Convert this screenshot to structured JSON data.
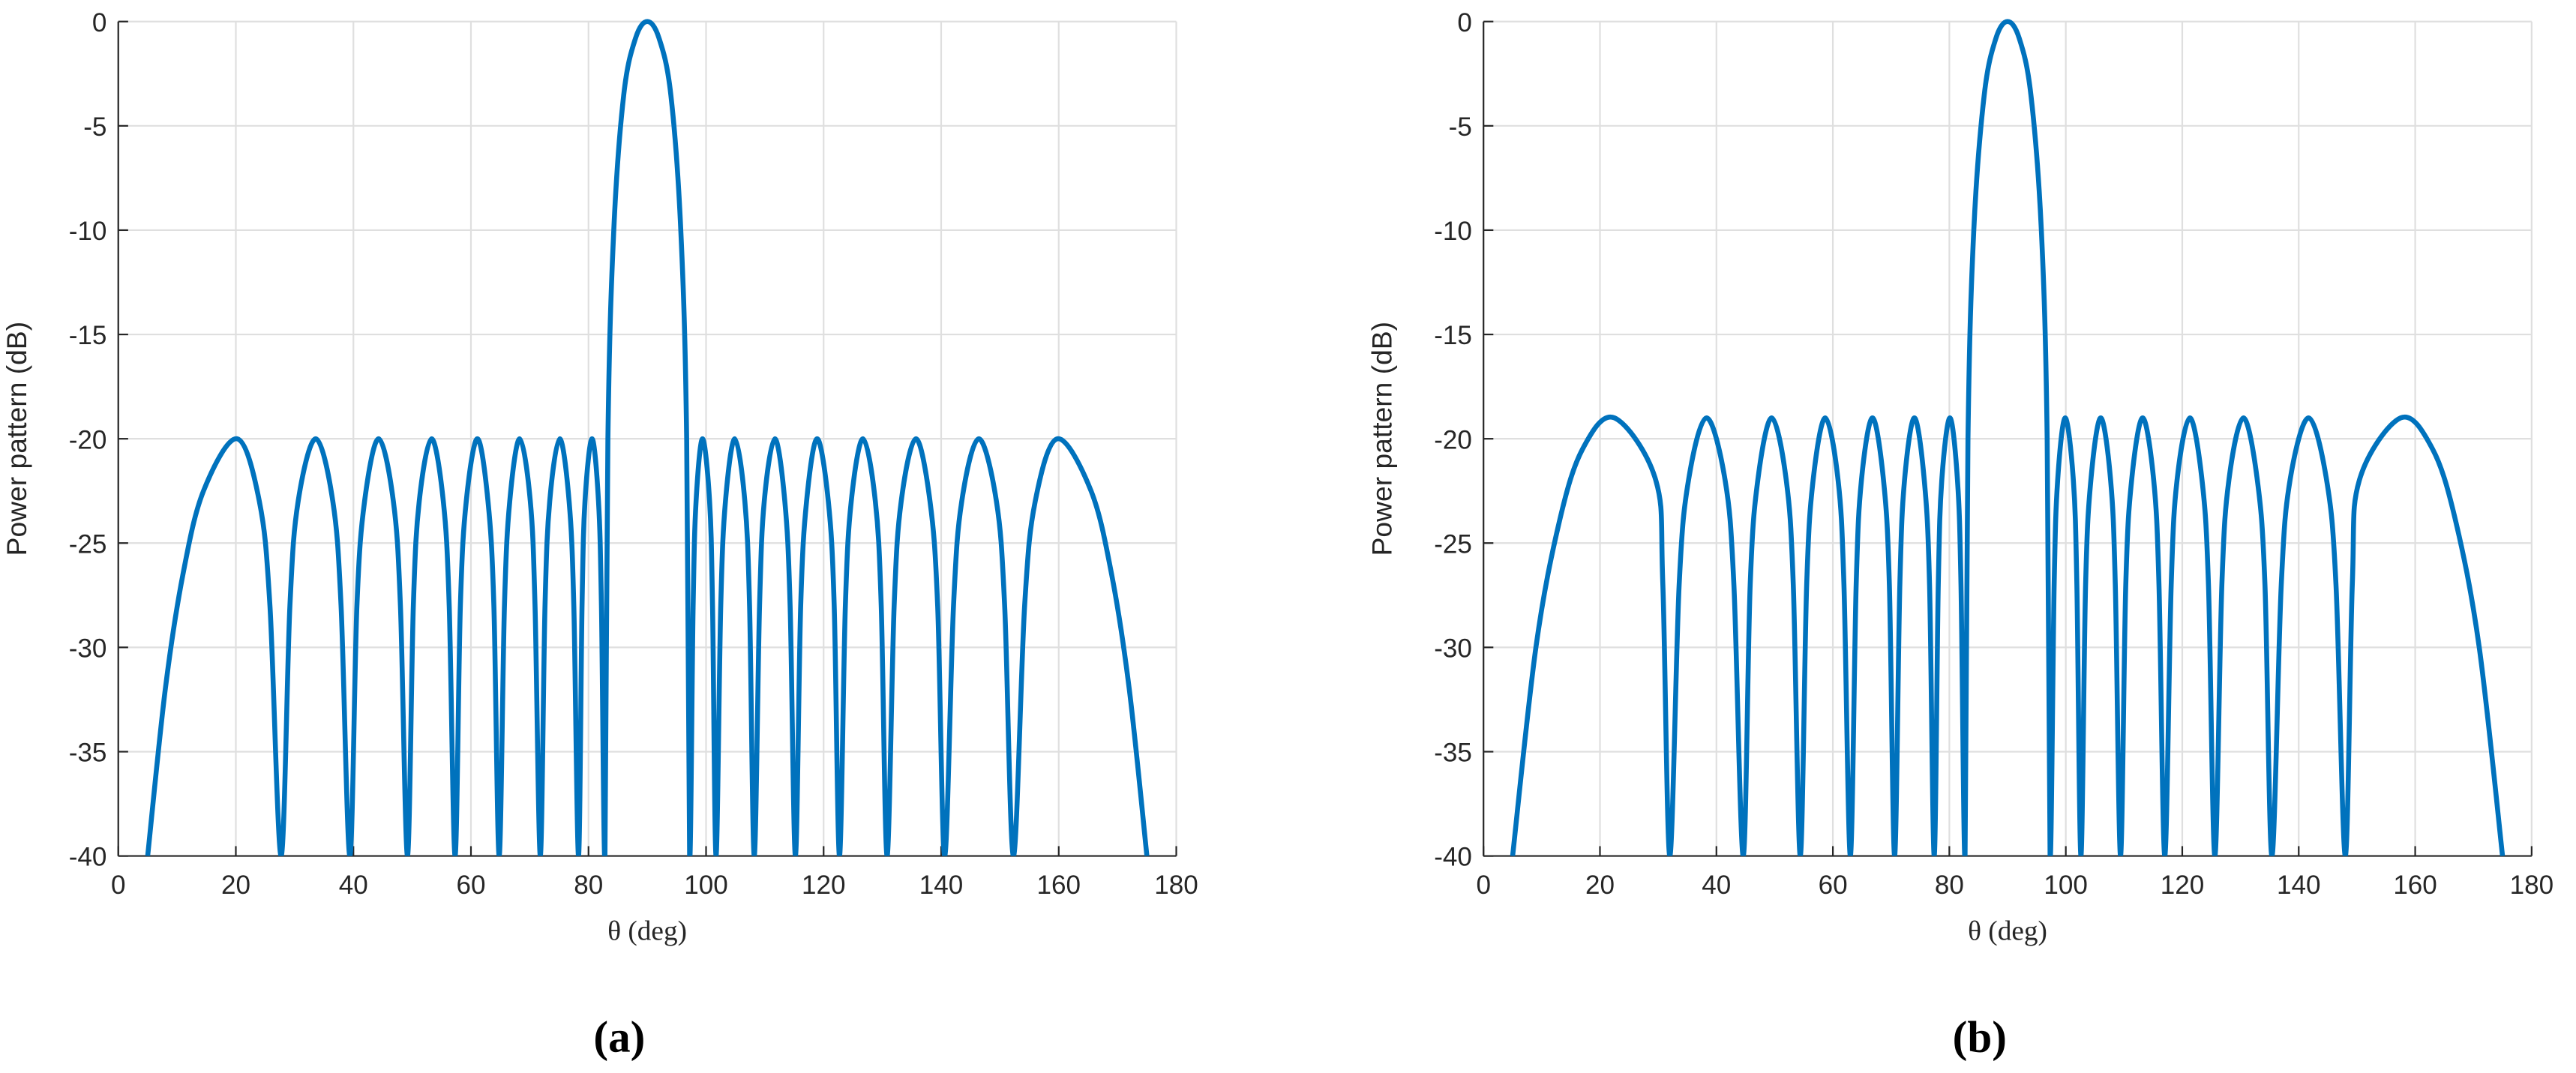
{
  "chart_data": [
    {
      "type": "line",
      "caption": "(a)",
      "xlabel": "θ (deg)",
      "ylabel": "Power pattern (dB)",
      "xlim": [
        0,
        180
      ],
      "ylim": [
        -40,
        0
      ],
      "xticks": [
        0,
        20,
        40,
        60,
        80,
        100,
        120,
        140,
        160,
        180
      ],
      "yticks": [
        0,
        -5,
        -10,
        -15,
        -20,
        -25,
        -30,
        -35,
        -40
      ],
      "grid": true,
      "x": [
        5,
        8,
        11,
        14.5,
        20.2,
        24,
        25.8,
        27.7,
        29.2,
        30.6,
        33.6,
        36.5,
        37.9,
        39.4,
        40.6,
        41.9,
        44.3,
        46.8,
        48,
        49.2,
        50.2,
        51.2,
        53.3,
        55.3,
        56.3,
        57.3,
        58.2,
        59.2,
        61.1,
        62.9,
        63.9,
        64.8,
        65.7,
        66.6,
        68.3,
        70.1,
        70.9,
        71.8,
        72.6,
        73.4,
        75.1,
        76.7,
        77.5,
        78.3,
        78.9,
        79.4,
        80.6,
        81.7,
        82.2,
        82.8,
        83.3,
        84.3,
        86,
        88,
        90,
        92,
        94,
        95.7,
        96.7,
        97.2,
        97.8,
        98.3,
        99.4,
        100.6,
        101.1,
        101.7,
        102.5,
        103.3,
        104.9,
        106.6,
        107.4,
        108.2,
        109.1,
        109.9,
        111.7,
        113.4,
        114.3,
        115.2,
        116.1,
        117.1,
        118.9,
        120.8,
        121.8,
        122.7,
        123.7,
        124.7,
        126.7,
        128.8,
        129.8,
        130.8,
        132,
        133.2,
        135.7,
        138.1,
        139.4,
        140.6,
        142.1,
        143.5,
        146.4,
        149.4,
        150.8,
        152.3,
        154.2,
        156,
        159.8,
        165.5,
        169,
        172,
        175
      ],
      "series": [
        {
          "color": "#0072bd",
          "values": [
            -40,
            -32,
            -26.5,
            -22.5,
            -20,
            -23,
            -28,
            -40,
            -28,
            -23,
            -20,
            -23,
            -28,
            -40,
            -28,
            -23,
            -20,
            -23,
            -28,
            -40,
            -28,
            -23,
            -20,
            -23,
            -28,
            -40,
            -28,
            -23,
            -20,
            -23,
            -28,
            -40,
            -28,
            -23,
            -20,
            -23,
            -28,
            -40,
            -28,
            -23,
            -20,
            -23,
            -28,
            -40,
            -28,
            -23,
            -20,
            -23,
            -28,
            -40,
            -20,
            -10,
            -3.5,
            -0.8,
            0,
            -0.8,
            -3.5,
            -10,
            -20,
            -40,
            -28,
            -23,
            -20,
            -23,
            -28,
            -40,
            -28,
            -23,
            -20,
            -23,
            -28,
            -40,
            -28,
            -23,
            -20,
            -23,
            -28,
            -40,
            -28,
            -23,
            -20,
            -23,
            -28,
            -40,
            -28,
            -23,
            -20,
            -23,
            -28,
            -40,
            -28,
            -23,
            -20,
            -23,
            -28,
            -40,
            -28,
            -23,
            -20,
            -23,
            -28,
            -40,
            -28,
            -23,
            -20,
            -22.5,
            -26.5,
            -32,
            -40
          ]
        }
      ]
    },
    {
      "type": "line",
      "caption": "(b)",
      "xlabel": "θ (deg)",
      "ylabel": "Power pattern (dB)",
      "xlim": [
        0,
        180
      ],
      "ylim": [
        -40,
        0
      ],
      "xticks": [
        0,
        20,
        40,
        60,
        80,
        100,
        120,
        140,
        160,
        180
      ],
      "yticks": [
        0,
        -5,
        -10,
        -15,
        -20,
        -25,
        -30,
        -35,
        -40
      ],
      "grid": true,
      "x": [
        5,
        9,
        13,
        17,
        22.5,
        29.6,
        30.8,
        32,
        33.6,
        35.2,
        38.3,
        41.5,
        43,
        44.6,
        45.8,
        47.1,
        49.5,
        52,
        53.2,
        54.4,
        55.5,
        56.6,
        58.7,
        60.9,
        61.9,
        63,
        64,
        64.9,
        66.8,
        68.7,
        69.7,
        70.6,
        71.5,
        72.3,
        74,
        75.7,
        76.6,
        77.4,
        78.1,
        78.7,
        80.1,
        81.4,
        82,
        82.7,
        83.2,
        84.2,
        86,
        88,
        90,
        92,
        94,
        95.8,
        96.8,
        97.3,
        98,
        98.6,
        99.9,
        101.3,
        101.9,
        102.6,
        103.4,
        104.3,
        106,
        107.7,
        108.5,
        109.4,
        110.3,
        111.3,
        113.2,
        115.1,
        116,
        117,
        118.1,
        119.1,
        121.3,
        123.4,
        124.5,
        125.6,
        126.8,
        128,
        130.5,
        132.9,
        134.2,
        135.4,
        137,
        138.5,
        141.7,
        144.8,
        146.4,
        148,
        149.2,
        150.4,
        157.5,
        163,
        167,
        171,
        175
      ],
      "series": [
        {
          "color": "#0072bd",
          "values": [
            -40,
            -30,
            -24,
            -20.5,
            -19,
            -22,
            -27,
            -40,
            -27,
            -22,
            -19,
            -22,
            -27,
            -40,
            -27,
            -22,
            -19,
            -22,
            -27,
            -40,
            -27,
            -22,
            -19,
            -22,
            -27,
            -40,
            -27,
            -22,
            -19,
            -22,
            -27,
            -40,
            -27,
            -22,
            -19,
            -22,
            -27,
            -40,
            -27,
            -22,
            -19,
            -22,
            -27,
            -40,
            -20,
            -10,
            -3.5,
            -0.8,
            0,
            -0.8,
            -3.5,
            -10,
            -20,
            -40,
            -27,
            -22,
            -19,
            -22,
            -27,
            -40,
            -27,
            -22,
            -19,
            -22,
            -27,
            -40,
            -27,
            -22,
            -19,
            -22,
            -27,
            -40,
            -27,
            -22,
            -19,
            -22,
            -27,
            -40,
            -27,
            -22,
            -19,
            -22,
            -27,
            -40,
            -27,
            -22,
            -19,
            -22,
            -27,
            -40,
            -27,
            -22,
            -19,
            -20.5,
            -24,
            -30,
            -40
          ]
        }
      ]
    }
  ]
}
